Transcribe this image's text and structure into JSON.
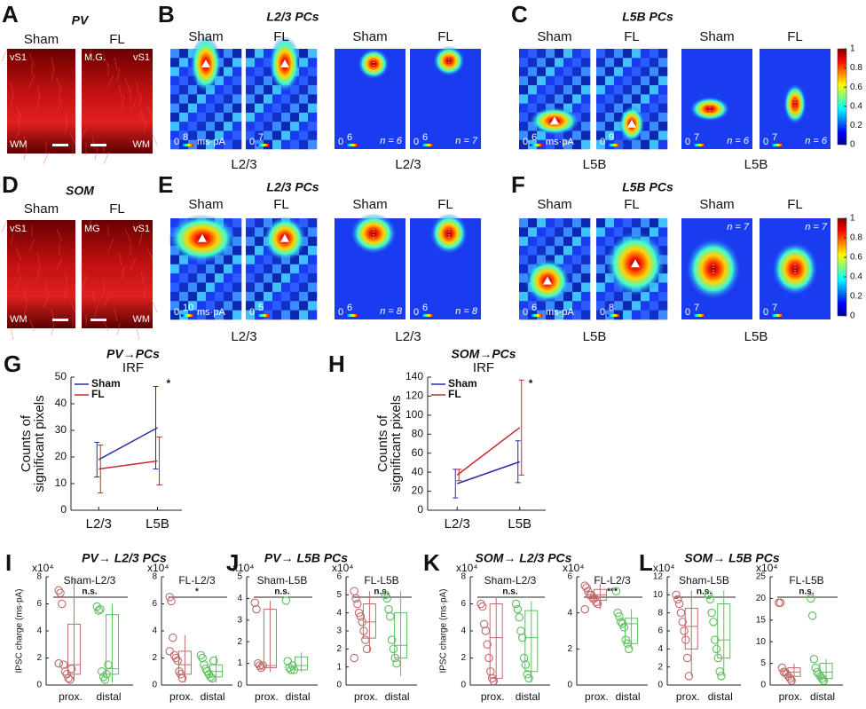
{
  "chart_data": [
    {
      "type": "micrograph",
      "panel": "A",
      "title": "PV",
      "images": [
        {
          "label": "Sham",
          "top_left": "vS1",
          "bottom_left": "WM"
        },
        {
          "label": "FL",
          "top_left": "M.G.",
          "top_right": "vS1",
          "bottom_right": "WM"
        }
      ]
    },
    {
      "type": "heatmap",
      "panel": "B",
      "title": "L2/3 PCs",
      "maps": [
        {
          "label": "Sham",
          "scale": [
            0,
            8
          ],
          "unit": "ms·pA"
        },
        {
          "label": "FL",
          "scale": [
            0,
            7
          ]
        },
        {
          "label": "Sham",
          "scale": [
            0,
            6
          ],
          "n": "n = 6"
        },
        {
          "label": "FL",
          "scale": [
            0,
            6
          ],
          "n": "n = 7"
        }
      ],
      "xlabels": [
        "L2/3",
        "L2/3"
      ]
    },
    {
      "type": "heatmap",
      "panel": "C",
      "title": "L5B PCs",
      "maps": [
        {
          "label": "Sham",
          "scale": [
            0,
            6
          ],
          "unit": "ms·pA"
        },
        {
          "label": "FL",
          "scale": [
            0,
            9
          ]
        },
        {
          "label": "Sham",
          "scale": [
            0,
            7
          ],
          "n": "n = 6"
        },
        {
          "label": "FL",
          "scale": [
            0,
            7
          ],
          "n": "n = 6"
        }
      ],
      "xlabels": [
        "L5B",
        "L5B"
      ],
      "colorbar": {
        "ylim": [
          0,
          1
        ],
        "yticks": [
          0,
          0.2,
          0.4,
          0.6,
          0.8,
          1
        ]
      }
    },
    {
      "type": "micrograph",
      "panel": "D",
      "title": "SOM",
      "images": [
        {
          "label": "Sham",
          "top_left": "vS1",
          "bottom_left": "WM"
        },
        {
          "label": "FL",
          "top_left": "MG",
          "top_right": "vS1",
          "bottom_right": "WM"
        }
      ]
    },
    {
      "type": "heatmap",
      "panel": "E",
      "title": "L2/3 PCs",
      "maps": [
        {
          "label": "Sham",
          "scale": [
            0,
            10
          ],
          "unit": "ms·pA"
        },
        {
          "label": "FL",
          "scale": [
            0,
            5
          ]
        },
        {
          "label": "Sham",
          "scale": [
            0,
            6
          ],
          "n": "n = 8"
        },
        {
          "label": "FL",
          "scale": [
            0,
            6
          ],
          "n": "n = 8"
        }
      ],
      "xlabels": [
        "L2/3",
        "L2/3"
      ]
    },
    {
      "type": "heatmap",
      "panel": "F",
      "title": "L5B PCs",
      "maps": [
        {
          "label": "Sham",
          "scale": [
            0,
            6
          ],
          "unit": "ms·pA"
        },
        {
          "label": "FL",
          "scale": [
            0,
            8
          ]
        },
        {
          "label": "Sham",
          "scale": [
            0,
            7
          ],
          "n": "n = 7"
        },
        {
          "label": "FL",
          "scale": [
            0,
            7
          ],
          "n": "n = 7"
        }
      ],
      "xlabels": [
        "L5B",
        "L5B"
      ],
      "colorbar": {
        "ylim": [
          0,
          1
        ],
        "yticks": [
          0,
          0.2,
          0.4,
          0.6,
          0.8,
          1
        ]
      }
    },
    {
      "type": "line",
      "panel": "G",
      "title": "PV→PCs",
      "subtitle": "IRF",
      "ylabel": [
        "Counts of",
        "significant pixels"
      ],
      "categories": [
        "L2/3",
        "L5B"
      ],
      "ylim": [
        0,
        50
      ],
      "yticks": [
        0,
        10,
        20,
        30,
        40,
        50
      ],
      "legend": "upper left",
      "annotation": "*",
      "series": [
        {
          "name": "Sham",
          "color": "#2b2ba8",
          "values": [
            19,
            31
          ],
          "errors": [
            6.5,
            15.5
          ]
        },
        {
          "name": "FL",
          "color": "#c8282d",
          "values": [
            15.5,
            18.5
          ],
          "errors": [
            9,
            9
          ]
        }
      ]
    },
    {
      "type": "line",
      "panel": "H",
      "title": "SOM→PCs",
      "subtitle": "IRF",
      "ylabel": [
        "Counts of",
        "significant pixels"
      ],
      "categories": [
        "L2/3",
        "L5B"
      ],
      "ylim": [
        0,
        140
      ],
      "yticks": [
        0,
        20,
        40,
        60,
        80,
        100,
        120,
        140
      ],
      "legend": "upper left",
      "annotation": "*",
      "series": [
        {
          "name": "Sham",
          "color": "#2b2ba8",
          "values": [
            28,
            51
          ],
          "errors": [
            15,
            22
          ]
        },
        {
          "name": "FL",
          "color": "#c8282d",
          "values": [
            37,
            87
          ],
          "errors": [
            6,
            50
          ]
        }
      ]
    },
    {
      "type": "box",
      "panel": "I",
      "panel_title": "PV→ L2/3 PCs",
      "title": "Sham-L2/3",
      "ylabel": "IPSC charge (ms·pA)",
      "unit_label": "x10⁴",
      "annotation": "n.s.",
      "categories": [
        "prox.",
        "distal"
      ],
      "colors": [
        "#c06a6a",
        "#5cbf5c"
      ],
      "ylim": [
        0,
        8
      ],
      "yticks": [
        0,
        2,
        4,
        6,
        8
      ],
      "boxes": [
        {
          "min": 0.3,
          "q1": 0.8,
          "median": 1.5,
          "q3": 4.5,
          "max": 7.8,
          "points": [
            7,
            6.8,
            6,
            1.5,
            1,
            0.8,
            0.5,
            0.4,
            1.2,
            1.6
          ]
        },
        {
          "min": 0.2,
          "q1": 0.8,
          "median": 1.2,
          "q3": 5.2,
          "max": 6,
          "points": [
            5.8,
            5.5,
            5.6,
            1,
            0.6,
            0.4,
            0.8,
            1.5
          ]
        }
      ]
    },
    {
      "type": "box",
      "title": "FL-L2/3",
      "unit_label": "x10⁴",
      "annotation": "*",
      "categories": [
        "prox.",
        "distal"
      ],
      "colors": [
        "#c06a6a",
        "#5cbf5c"
      ],
      "ylim": [
        0,
        8
      ],
      "yticks": [
        0,
        2,
        4,
        6,
        8
      ],
      "boxes": [
        {
          "min": 0.2,
          "q1": 0.8,
          "median": 1.5,
          "q3": 2.5,
          "max": 3.7,
          "points": [
            6.5,
            6.2,
            3.5,
            2.2,
            2,
            1.8,
            1,
            0.8,
            0.5,
            2.5
          ]
        },
        {
          "min": 0.2,
          "q1": 0.6,
          "median": 1,
          "q3": 1.5,
          "max": 2.2,
          "points": [
            2.2,
            2,
            1.5,
            1.2,
            1,
            0.8,
            0.6,
            0.5,
            1.8
          ]
        }
      ]
    },
    {
      "type": "box",
      "panel": "J",
      "panel_title": "PV→ L5B PCs",
      "title": "Sham-L5B",
      "unit_label": "x10⁴",
      "annotation": "n.s.",
      "categories": [
        "prox.",
        "distal"
      ],
      "colors": [
        "#c06a6a",
        "#5cbf5c"
      ],
      "ylim": [
        0,
        5
      ],
      "yticks": [
        0,
        1,
        2,
        3,
        4,
        5
      ],
      "boxes": [
        {
          "min": 0.6,
          "q1": 0.8,
          "median": 0.9,
          "q3": 3.5,
          "max": 3.9,
          "points": [
            3.8,
            3.5,
            1,
            0.9,
            0.8,
            0.9
          ]
        },
        {
          "min": 0.6,
          "q1": 0.7,
          "median": 0.9,
          "q3": 1.3,
          "max": 1.5,
          "points": [
            3.9,
            1.1,
            0.8,
            0.7,
            0.9,
            0.7
          ]
        }
      ]
    },
    {
      "type": "box",
      "title": "FL-L5B",
      "unit_label": "x10⁴",
      "annotation": "n.s.",
      "categories": [
        "prox.",
        "distal"
      ],
      "colors": [
        "#c06a6a",
        "#5cbf5c"
      ],
      "ylim": [
        0,
        6
      ],
      "yticks": [
        0,
        1,
        2,
        3,
        4,
        5,
        6
      ],
      "boxes": [
        {
          "min": 1.8,
          "q1": 2.6,
          "median": 3.5,
          "q3": 4.5,
          "max": 5.2,
          "points": [
            5.2,
            4.8,
            4.5,
            4,
            3.8,
            3.5,
            3,
            2.5,
            2,
            1.5
          ]
        },
        {
          "min": 0.5,
          "q1": 1.5,
          "median": 2.2,
          "q3": 4,
          "max": 5.2,
          "points": [
            5,
            4.8,
            4.2,
            3.8,
            2.5,
            2,
            1.5,
            1.2
          ]
        }
      ]
    },
    {
      "type": "box",
      "panel": "K",
      "panel_title": "SOM→ L2/3 PCs",
      "title": "Sham-L2/3",
      "ylabel": "IPSC charge (ms·pA)",
      "unit_label": "x10⁴",
      "annotation": "n.s.",
      "categories": [
        "prox.",
        "distal"
      ],
      "colors": [
        "#c06a6a",
        "#5cbf5c"
      ],
      "ylim": [
        0,
        8
      ],
      "yticks": [
        0,
        2,
        4,
        6,
        8
      ],
      "boxes": [
        {
          "min": 0.1,
          "q1": 0.5,
          "median": 3.5,
          "q3": 6,
          "max": 6.5,
          "points": [
            6,
            5.8,
            4.5,
            4,
            3,
            2,
            1,
            0.5,
            0.3
          ]
        },
        {
          "min": 0.2,
          "q1": 1,
          "median": 3.5,
          "q3": 5.5,
          "max": 6.2,
          "points": [
            6,
            5.6,
            5,
            4,
            3.5,
            2,
            1.5,
            0.8,
            0.5
          ]
        }
      ]
    },
    {
      "type": "box",
      "title": "FL-L2/3",
      "unit_label": "x10⁴",
      "annotation": "***",
      "categories": [
        "prox.",
        "distal"
      ],
      "colors": [
        "#c06a6a",
        "#5cbf5c"
      ],
      "ylim": [
        0,
        6
      ],
      "yticks": [
        0,
        2,
        4,
        6
      ],
      "boxes": [
        {
          "min": 4.2,
          "q1": 4.7,
          "median": 5,
          "q3": 5.3,
          "max": 5.6,
          "points": [
            5.5,
            5.4,
            5.2,
            5,
            5,
            4.8,
            4.8,
            4.6,
            4.5,
            4.2
          ]
        },
        {
          "min": 2,
          "q1": 2.3,
          "median": 3.4,
          "q3": 3.7,
          "max": 4.2,
          "points": [
            5.2,
            4,
            3.8,
            3.5,
            3.4,
            3.2,
            2.5,
            2.3,
            2
          ]
        }
      ]
    },
    {
      "type": "box",
      "panel": "L",
      "panel_title": "SOM→ L5B PCs",
      "title": "Sham-L5B",
      "unit_label": "x10⁴",
      "annotation": "n.s.",
      "categories": [
        "prox.",
        "distal"
      ],
      "colors": [
        "#c06a6a",
        "#5cbf5c"
      ],
      "ylim": [
        0,
        12
      ],
      "yticks": [
        0,
        2,
        4,
        6,
        8,
        10,
        12
      ],
      "boxes": [
        {
          "min": 1,
          "q1": 4,
          "median": 6.5,
          "q3": 8.5,
          "max": 10.5,
          "points": [
            10,
            9.5,
            9,
            8,
            7,
            6,
            5,
            3,
            1
          ]
        },
        {
          "min": 1,
          "q1": 3,
          "median": 5,
          "q3": 9,
          "max": 10.5,
          "points": [
            10,
            9.5,
            8,
            7,
            5,
            4,
            3,
            1.5,
            1
          ]
        }
      ]
    },
    {
      "type": "box",
      "title": "FL-L5B",
      "unit_label": "x10⁴",
      "annotation": "n.s.",
      "categories": [
        "prox.",
        "distal"
      ],
      "colors": [
        "#c06a6a",
        "#5cbf5c"
      ],
      "ylim": [
        0,
        25
      ],
      "yticks": [
        0,
        5,
        10,
        15,
        20,
        25
      ],
      "boxes": [
        {
          "min": 0.5,
          "q1": 2,
          "median": 3,
          "q3": 4,
          "max": 5,
          "points": [
            19,
            19,
            4,
            3,
            3,
            2.5,
            2,
            1.5,
            1
          ]
        },
        {
          "min": 0.5,
          "q1": 1.5,
          "median": 3,
          "q3": 5,
          "max": 6,
          "points": [
            20,
            16,
            6,
            4,
            3,
            2.5,
            2,
            1.5,
            1
          ]
        }
      ]
    }
  ]
}
